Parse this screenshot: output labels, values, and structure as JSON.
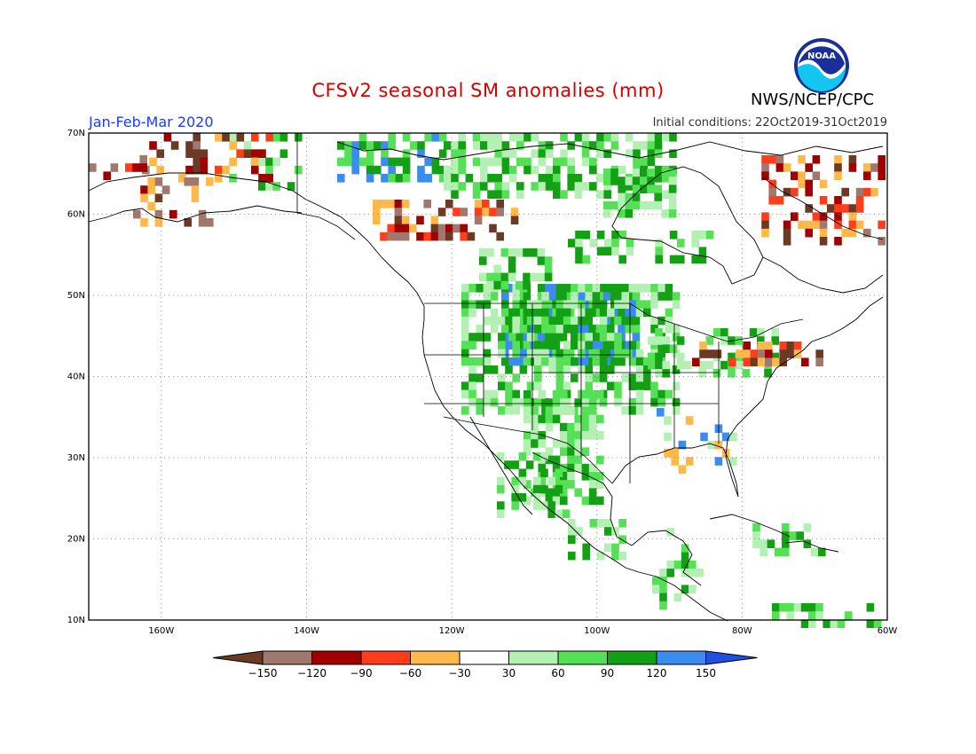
{
  "header": {
    "title": "CFSv2 seasonal SM anomalies (mm)",
    "agency": "NWS/NCEP/CPC",
    "period": "Jan-Feb-Mar 2020",
    "initial_conditions": "Initial conditions: 22Oct2019-31Oct2019",
    "logo_text": "NOAA"
  },
  "map": {
    "lat_labels": [
      "70N",
      "60N",
      "50N",
      "40N",
      "30N",
      "20N",
      "10N"
    ],
    "lon_labels": [
      "160W",
      "140W",
      "120W",
      "100W",
      "80W",
      "60W"
    ],
    "lat_range": [
      10,
      70
    ],
    "lon_range": [
      -170,
      -60
    ]
  },
  "legend": {
    "labels": [
      "-150",
      "-120",
      "-90",
      "-60",
      "-30",
      "30",
      "60",
      "90",
      "120",
      "150"
    ],
    "colors": [
      "#6b3a24",
      "#a0786e",
      "#a00000",
      "#ff3d1a",
      "#ffb84a",
      "#ffffff",
      "#b4f0b4",
      "#55e055",
      "#14a014",
      "#3c8cf0",
      "#2050e0"
    ]
  }
}
